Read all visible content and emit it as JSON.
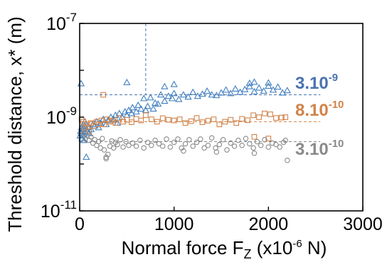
{
  "chart_data": {
    "type": "scatter",
    "xlabel": "Normal force F",
    "xlabel_sub": "Z",
    "xlabel_unit_prefix": " (x10",
    "xlabel_unit_exp": "-6",
    "xlabel_unit_suffix": " N)",
    "ylabel": "Threshold distance, x* (m)",
    "xlim": [
      0,
      3000
    ],
    "ylim_exp": [
      -11,
      -7
    ],
    "y_scale": "log",
    "x_ticks": [
      {
        "value": 0,
        "label": "0"
      },
      {
        "value": 1000,
        "label": "1000"
      },
      {
        "value": 2000,
        "label": "2000"
      },
      {
        "value": 3000,
        "label": "3000"
      }
    ],
    "y_ticks": [
      {
        "exp": -7,
        "base": "10",
        "sup": "-7"
      },
      {
        "exp": -9,
        "base": "10",
        "sup": "-9"
      },
      {
        "exp": -11,
        "base": "10",
        "sup": "-11"
      }
    ],
    "reference_lines": [
      {
        "series": "triangles",
        "value": 3e-09,
        "label_base": "3.10",
        "label_sup": "-9",
        "color": "#4a72b0"
      },
      {
        "series": "squares",
        "value": 8e-10,
        "label_base": "8.10",
        "label_sup": "-10",
        "color": "#d0834a"
      },
      {
        "series": "circles",
        "value": 3e-10,
        "label_base": "3.10",
        "label_sup": "-10",
        "color": "#8a8a8a"
      }
    ],
    "vertical_marker_x": 700,
    "series": [
      {
        "marker": "triangle",
        "color": "#3f7ec0",
        "points": [
          [
            5,
            4e-10
          ],
          [
            10,
            5e-10
          ],
          [
            15,
            4.5e-10
          ],
          [
            20,
            6e-10
          ],
          [
            25,
            3.5e-10
          ],
          [
            30,
            5.5e-10
          ],
          [
            35,
            4.2e-10
          ],
          [
            40,
            7e-10
          ],
          [
            45,
            3.2e-10
          ],
          [
            50,
            6.5e-10
          ],
          [
            55,
            8e-10
          ],
          [
            60,
            4.8e-10
          ],
          [
            70,
            1.4e-10
          ],
          [
            80,
            5e-10
          ],
          [
            90,
            6e-10
          ],
          [
            100,
            4.5e-10
          ],
          [
            120,
            5.5e-10
          ],
          [
            140,
            7e-10
          ],
          [
            160,
            6.5e-10
          ],
          [
            180,
            8e-10
          ],
          [
            200,
            6e-10
          ],
          [
            220,
            7.5e-10
          ],
          [
            250,
            9e-10
          ],
          [
            280,
            7e-10
          ],
          [
            300,
            8.5e-10
          ],
          [
            330,
            1e-09
          ],
          [
            360,
            9e-10
          ],
          [
            380,
            1.1e-09
          ],
          [
            400,
            7.5e-10
          ],
          [
            420,
            1.2e-09
          ],
          [
            450,
            1e-09
          ],
          [
            480,
            1.3e-09
          ],
          [
            500,
            1.1e-09
          ],
          [
            520,
            1.4e-09
          ],
          [
            550,
            1.2e-09
          ],
          [
            560,
            1.6e-09
          ],
          [
            600,
            1.3e-09
          ],
          [
            620,
            1.8e-09
          ],
          [
            650,
            1.5e-09
          ],
          [
            680,
            2.5e-09
          ],
          [
            700,
            1.4e-09
          ],
          [
            720,
            1.7e-09
          ],
          [
            750,
            2.6e-09
          ],
          [
            780,
            1.5e-09
          ],
          [
            800,
            2e-09
          ],
          [
            830,
            1.9e-09
          ],
          [
            860,
            3e-09
          ],
          [
            900,
            2.2e-09
          ],
          [
            940,
            2.8e-09
          ],
          [
            980,
            2.5e-09
          ],
          [
            1000,
            3.2e-09
          ],
          [
            1050,
            2.4e-09
          ],
          [
            1100,
            3e-09
          ],
          [
            1150,
            2.7e-09
          ],
          [
            1200,
            3.4e-09
          ],
          [
            1250,
            2.8e-09
          ],
          [
            1300,
            3.1e-09
          ],
          [
            1350,
            3.6e-09
          ],
          [
            1400,
            3e-09
          ],
          [
            1450,
            2.9e-09
          ],
          [
            1500,
            3.3e-09
          ],
          [
            1550,
            3.8e-09
          ],
          [
            1600,
            3.2e-09
          ],
          [
            1650,
            4e-09
          ],
          [
            1700,
            3.4e-09
          ],
          [
            1750,
            3.9e-09
          ],
          [
            1800,
            4.5e-09
          ],
          [
            1850,
            3.5e-09
          ],
          [
            1900,
            4.2e-09
          ],
          [
            1950,
            3.6e-09
          ],
          [
            2000,
            4.6e-09
          ],
          [
            2050,
            3.8e-09
          ],
          [
            2100,
            4.4e-09
          ],
          [
            2150,
            3.3e-09
          ],
          [
            2200,
            3.7e-09
          ],
          [
            15,
            5.2e-09
          ],
          [
            500,
            5.5e-09
          ],
          [
            900,
            4.5e-09
          ],
          [
            1000,
            5e-09
          ],
          [
            1800,
            5.3e-09
          ],
          [
            1850,
            5.6e-09
          ],
          [
            2000,
            5.4e-09
          ]
        ]
      },
      {
        "marker": "square",
        "color": "#d0834a",
        "points": [
          [
            20,
            9e-10
          ],
          [
            40,
            8e-10
          ],
          [
            60,
            6e-10
          ],
          [
            80,
            7e-10
          ],
          [
            100,
            5e-10
          ],
          [
            120,
            7.5e-10
          ],
          [
            150,
            6.5e-10
          ],
          [
            180,
            8e-10
          ],
          [
            200,
            7e-10
          ],
          [
            230,
            8.5e-10
          ],
          [
            260,
            7e-10
          ],
          [
            290,
            9e-10
          ],
          [
            320,
            8e-10
          ],
          [
            350,
            8.5e-10
          ],
          [
            380,
            7.5e-10
          ],
          [
            420,
            9.5e-10
          ],
          [
            460,
            8e-10
          ],
          [
            500,
            8.8e-10
          ],
          [
            550,
            7.8e-10
          ],
          [
            600,
            9.2e-10
          ],
          [
            650,
            8.5e-10
          ],
          [
            700,
            1.1e-09
          ],
          [
            760,
            9e-10
          ],
          [
            820,
            8e-10
          ],
          [
            880,
            9.5e-10
          ],
          [
            940,
            8.8e-10
          ],
          [
            1000,
            8.5e-10
          ],
          [
            1060,
            9e-10
          ],
          [
            1120,
            7.5e-10
          ],
          [
            1180,
            8.2e-10
          ],
          [
            1240,
            9.6e-10
          ],
          [
            1300,
            7.8e-10
          ],
          [
            1360,
            8.4e-10
          ],
          [
            1420,
            9e-10
          ],
          [
            1480,
            7e-10
          ],
          [
            1540,
            8e-10
          ],
          [
            1600,
            8.8e-10
          ],
          [
            1660,
            7.5e-10
          ],
          [
            1720,
            9.2e-10
          ],
          [
            1780,
            8.6e-10
          ],
          [
            1840,
            1.1e-09
          ],
          [
            1900,
            1e-09
          ],
          [
            1960,
            1.2e-09
          ],
          [
            2020,
            1.15e-09
          ],
          [
            2080,
            9.6e-10
          ],
          [
            2140,
            9.8e-10
          ],
          [
            2180,
            1e-09
          ],
          [
            250,
            3e-09
          ],
          [
            2000,
            3.5e-10
          ],
          [
            1850,
            3.8e-10
          ]
        ]
      },
      {
        "marker": "circle",
        "color": "#8a8a8a",
        "points": [
          [
            20,
            5e-10
          ],
          [
            40,
            4.5e-10
          ],
          [
            60,
            3.5e-10
          ],
          [
            80,
            4e-10
          ],
          [
            100,
            3.2e-10
          ],
          [
            120,
            3.8e-10
          ],
          [
            140,
            2.8e-10
          ],
          [
            160,
            3.3e-10
          ],
          [
            180,
            2.5e-10
          ],
          [
            200,
            3e-10
          ],
          [
            220,
            2.2e-10
          ],
          [
            240,
            3.5e-10
          ],
          [
            260,
            2e-10
          ],
          [
            280,
            1.4e-10
          ],
          [
            300,
            1.6e-10
          ],
          [
            320,
            2.4e-10
          ],
          [
            340,
            3.1e-10
          ],
          [
            360,
            2.2e-10
          ],
          [
            380,
            2.9e-10
          ],
          [
            400,
            2.6e-10
          ],
          [
            430,
            3.3e-10
          ],
          [
            460,
            2.3e-10
          ],
          [
            490,
            3e-10
          ],
          [
            520,
            2.5e-10
          ],
          [
            560,
            2.8e-10
          ],
          [
            600,
            2.4e-10
          ],
          [
            640,
            3.2e-10
          ],
          [
            680,
            2.2e-10
          ],
          [
            720,
            2.9e-10
          ],
          [
            760,
            2.5e-10
          ],
          [
            800,
            3.2e-10
          ],
          [
            840,
            2.7e-10
          ],
          [
            880,
            2.4e-10
          ],
          [
            920,
            3.4e-10
          ],
          [
            960,
            2.3e-10
          ],
          [
            1000,
            2.9e-10
          ],
          [
            1040,
            3.4e-10
          ],
          [
            1080,
            2.2e-10
          ],
          [
            1120,
            2.7e-10
          ],
          [
            1160,
            3.3e-10
          ],
          [
            1200,
            2.4e-10
          ],
          [
            1240,
            2.9e-10
          ],
          [
            1280,
            3.4e-10
          ],
          [
            1320,
            2.2e-10
          ],
          [
            1360,
            2.5e-10
          ],
          [
            1400,
            3.6e-10
          ],
          [
            1440,
            2.2e-10
          ],
          [
            1480,
            2.6e-10
          ],
          [
            1520,
            3.3e-10
          ],
          [
            1560,
            2e-10
          ],
          [
            1600,
            2.8e-10
          ],
          [
            1640,
            2.4e-10
          ],
          [
            1680,
            3.2e-10
          ],
          [
            1720,
            2.5e-10
          ],
          [
            1760,
            3.5e-10
          ],
          [
            1800,
            2.7e-10
          ],
          [
            1840,
            2.2e-10
          ],
          [
            1880,
            3e-10
          ],
          [
            1920,
            2.5e-10
          ],
          [
            1960,
            3.3e-10
          ],
          [
            2000,
            2.3e-10
          ],
          [
            2040,
            2.8e-10
          ],
          [
            2080,
            2.6e-10
          ],
          [
            2120,
            2.3e-10
          ],
          [
            2160,
            2.9e-10
          ],
          [
            2200,
            1.2e-10
          ],
          [
            2180,
            3.2e-10
          ],
          [
            1850,
            1.7e-10
          ],
          [
            1450,
            1.8e-10
          ],
          [
            1100,
            1.9e-10
          ],
          [
            280,
            1.3e-10
          ],
          [
            60,
            5.5e-10
          ],
          [
            30,
            6e-10
          ]
        ]
      }
    ]
  }
}
